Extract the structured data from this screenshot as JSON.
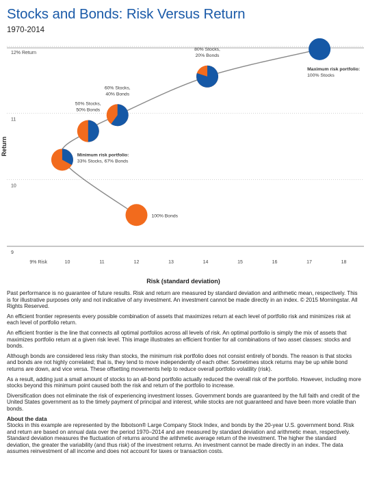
{
  "header": {
    "title": "Stocks and Bonds: Risk Versus Return",
    "subtitle": "1970-2014"
  },
  "chart_data": {
    "type": "scatter",
    "title": "Stocks and Bonds: Risk Versus Return",
    "subtitle": "1970-2014",
    "xlabel": "Risk (standard deviation)",
    "ylabel": "Return",
    "xlim": [
      8.5,
      18.5
    ],
    "ylim": [
      9,
      12
    ],
    "x_ticks": [
      "9% Risk",
      "10",
      "11",
      "12",
      "13",
      "14",
      "15",
      "16",
      "17",
      "18"
    ],
    "y_ticks": [
      "9",
      "10",
      "11",
      "12% Return"
    ],
    "grid": "horizontal",
    "colors": {
      "stocks": "#1558a6",
      "bonds": "#f26b1d",
      "curve": "#888888",
      "title": "#1a5aa8"
    },
    "series": [
      {
        "name": "Stocks",
        "color": "#1558a6"
      },
      {
        "name": "Bonds",
        "color": "#f26b1d"
      }
    ],
    "points": [
      {
        "label": "100% Bonds",
        "label_bold": "",
        "x": 12.0,
        "y": 9.47,
        "stocks_pct": 0
      },
      {
        "label": "33% Stocks, 67% Bonds",
        "label_bold": "Minimum risk portfolio:",
        "x": 9.85,
        "y": 10.3,
        "stocks_pct": 33
      },
      {
        "label": "50% Stocks, 50% Bonds",
        "label_bold": "",
        "x": 10.6,
        "y": 10.73,
        "stocks_pct": 50
      },
      {
        "label": "60% Stocks, 40% Bonds",
        "label_bold": "",
        "x": 11.45,
        "y": 10.97,
        "stocks_pct": 60
      },
      {
        "label": "80% Stocks, 20% Bonds",
        "label_bold": "",
        "x": 14.05,
        "y": 11.55,
        "stocks_pct": 80
      },
      {
        "label": "100% Stocks",
        "label_bold": "Maximum risk portfolio:",
        "x": 17.3,
        "y": 11.96,
        "stocks_pct": 100
      }
    ]
  },
  "notes": {
    "p1": "Past performance is no guarantee of future results. Risk and return are measured by standard deviation and arithmetic mean, respectively. This is for illustrative purposes only and not indicative of any investment. An investment cannot be made directly in an index. © 2015 Morningstar. All Rights Reserved.",
    "p2": "An efficient frontier represents every possible combination of assets that maximizes return at each level of portfolio risk and minimizes risk at each level of portfolio return.",
    "p3": "An efficient frontier is the line that connects all optimal portfolios across all levels of risk. An optimal portfolio is simply the mix of assets that maximizes portfolio return at a given risk level. This image illustrates an efficient frontier for all combinations of two asset classes: stocks and bonds.",
    "p4": "Although bonds are considered less risky than stocks, the minimum risk portfolio does not consist entirely of bonds. The reason is that stocks and bonds are not highly correlated; that is, they tend to move independently of each other. Sometimes stock returns may be up while bond returns are down, and vice versa. These offsetting movements help to reduce overall portfolio volatility (risk).",
    "p5": "As a result, adding just a small amount of stocks to an all-bond portfolio actually reduced the overall risk of the portfolio. However, including more stocks beyond this minimum point caused both the risk and return of the portfolio to increase.",
    "p6": "Diversification does not eliminate the risk of experiencing investment losses. Government bonds are guaranteed by the full faith and credit of the United States government as to the timely payment of principal and interest, while stocks are not guaranteed and have been more volatile than bonds.",
    "about_heading": "About the data",
    "about_text": "Stocks in this example are represented by the Ibbotson® Large Company Stock Index, and bonds by the 20-year U.S. government bond. Risk and return are based on annual data over the period 1970–2014 and are measured by standard deviation and arithmetic mean, respectively. Standard deviation measures the fluctuation of returns around the arithmetic average return of the investment. The higher the standard deviation, the greater the variability (and thus risk) of the investment returns. An investment cannot be made directly in an index. The data assumes reinvestment of all income and does not account for taxes or transaction costs."
  }
}
